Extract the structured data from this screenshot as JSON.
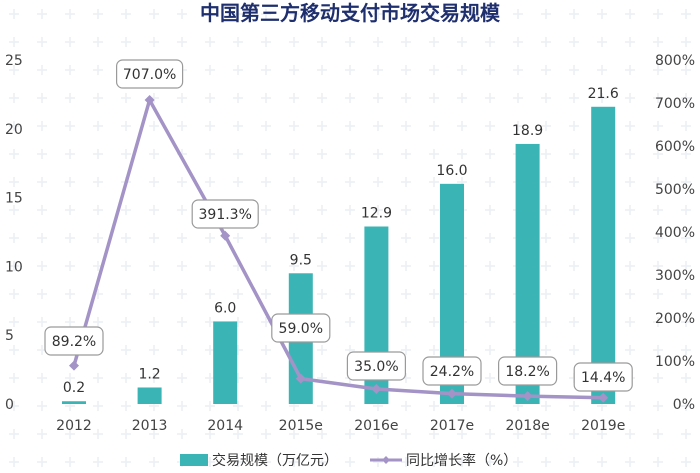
{
  "chart_data": {
    "type": "bar+line",
    "title": "中国第三方移动支付市场交易规模",
    "categories": [
      "2012",
      "2013",
      "2014",
      "2015e",
      "2016e",
      "2017e",
      "2018e",
      "2019e"
    ],
    "series": [
      {
        "name": "交易规模（万亿元）",
        "type": "bar",
        "axis": "left",
        "values": [
          0.2,
          1.2,
          6.0,
          9.5,
          12.9,
          16.0,
          18.9,
          21.6
        ],
        "labels": [
          "0.2",
          "1.2",
          "6.0",
          "9.5",
          "12.9",
          "16.0",
          "18.9",
          "21.6"
        ],
        "color": "#3bb4b6"
      },
      {
        "name": "同比增长率（%）",
        "type": "line",
        "axis": "right",
        "values": [
          89.2,
          707.0,
          391.3,
          59.0,
          35.0,
          24.2,
          18.2,
          14.4
        ],
        "labels": [
          "89.2%",
          "707.0%",
          "391.3%",
          "59.0%",
          "35.0%",
          "24.2%",
          "18.2%",
          "14.4%"
        ],
        "color": "#a393c6"
      }
    ],
    "ylim_left": [
      0,
      25
    ],
    "yticks_left": [
      "0",
      "5",
      "10",
      "15",
      "20",
      "25"
    ],
    "ylim_right": [
      0,
      800
    ],
    "yticks_right": [
      "0%",
      "100%",
      "200%",
      "300%",
      "400%",
      "500%",
      "600%",
      "700%",
      "800%"
    ],
    "grid": false,
    "legend_position": "bottom"
  }
}
